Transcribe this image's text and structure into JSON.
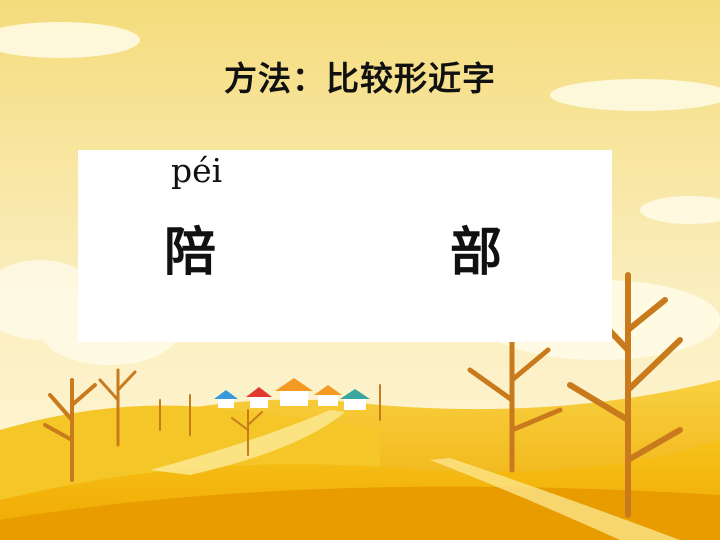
{
  "slide": {
    "title": "方法：比较形近字",
    "card": {
      "pinyin": "péi",
      "char_left": "陪",
      "char_right": "部"
    }
  },
  "colors": {
    "sky_top": "#f6e08a",
    "sky_bottom": "#fff5cc",
    "hill": "#f2b400",
    "hill_dark": "#e59a00",
    "tree": "#c97a1c",
    "card": "#ffffff"
  }
}
